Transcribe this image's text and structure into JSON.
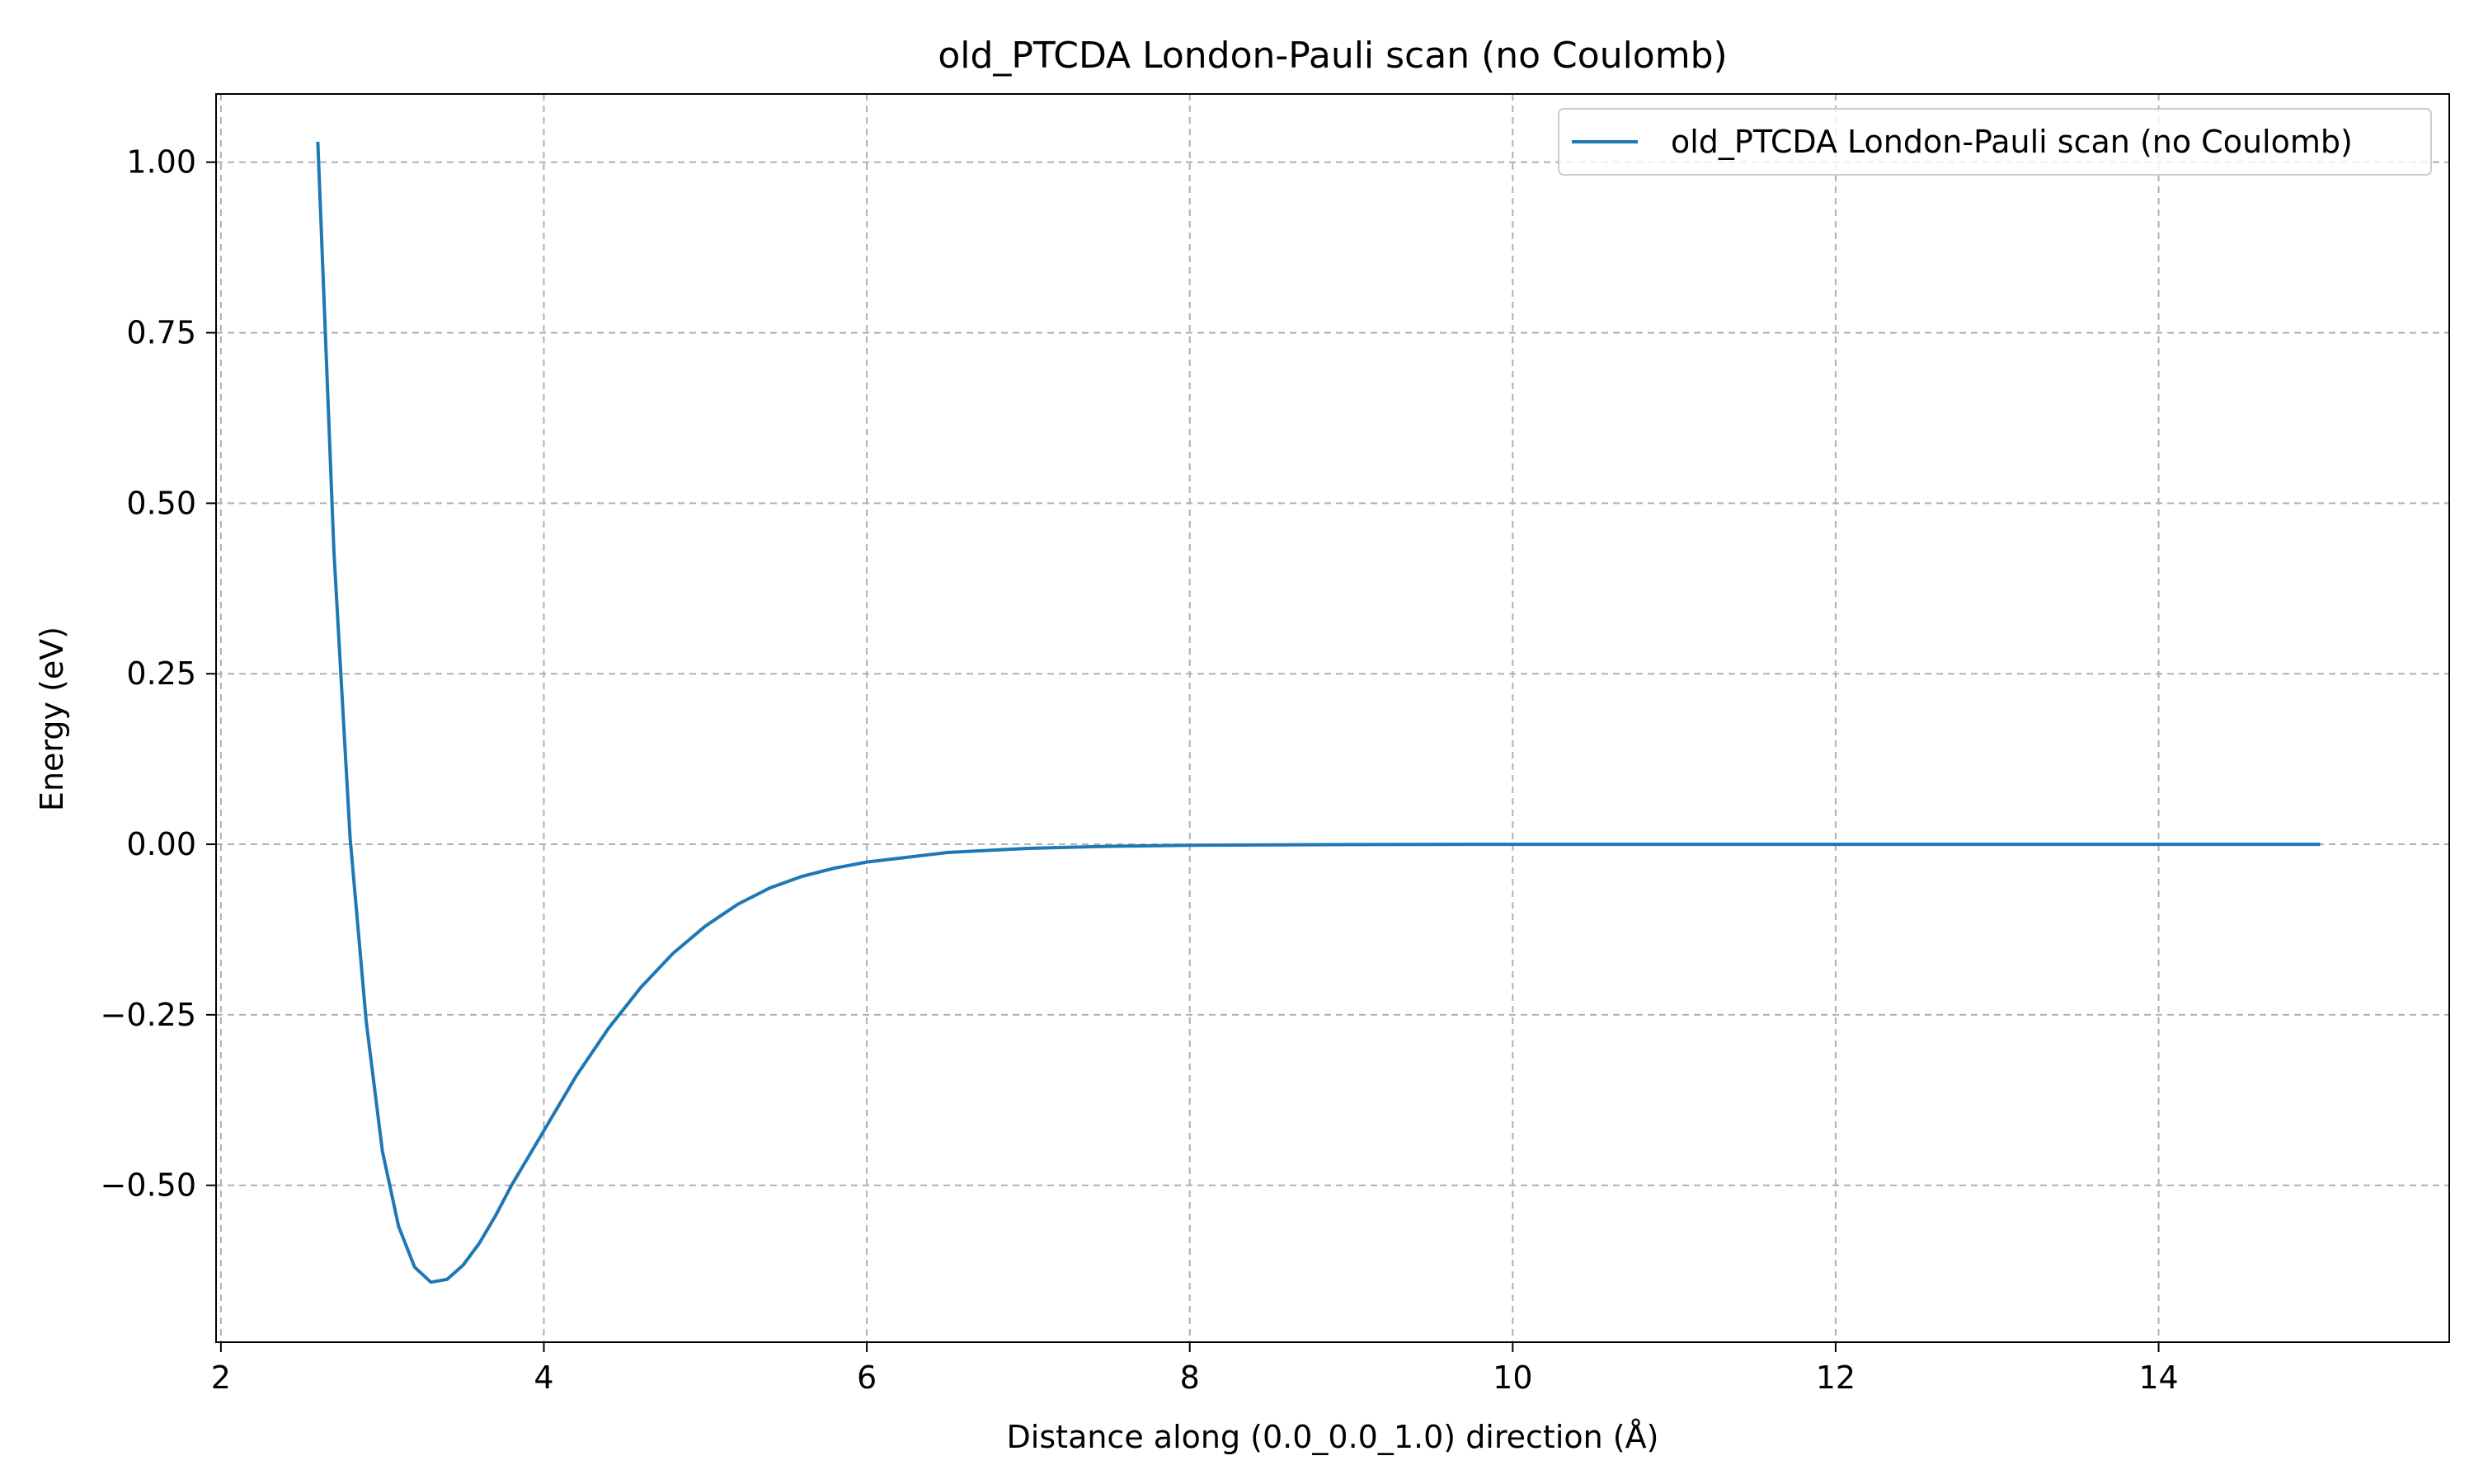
{
  "chart_data": {
    "type": "line",
    "title": "old_PTCDA London-Pauli scan (no Coulomb)",
    "xlabel": "Distance along (0.0_0.0_1.0) direction (Å)",
    "ylabel": "Energy (eV)",
    "xlim": [
      1.97,
      15.8
    ],
    "ylim": [
      -0.73,
      1.1
    ],
    "grid": true,
    "legend_location": "upper right",
    "x_ticks": [
      {
        "value": 2,
        "label": "2"
      },
      {
        "value": 4,
        "label": "4"
      },
      {
        "value": 6,
        "label": "6"
      },
      {
        "value": 8,
        "label": "8"
      },
      {
        "value": 10,
        "label": "10"
      },
      {
        "value": 12,
        "label": "12"
      },
      {
        "value": 14,
        "label": "14"
      }
    ],
    "y_ticks": [
      {
        "value": -0.5,
        "label": "−0.50"
      },
      {
        "value": -0.25,
        "label": "−0.25"
      },
      {
        "value": 0.0,
        "label": "0.00"
      },
      {
        "value": 0.25,
        "label": "0.25"
      },
      {
        "value": 0.5,
        "label": "0.50"
      },
      {
        "value": 0.75,
        "label": "0.75"
      },
      {
        "value": 1.0,
        "label": "1.00"
      }
    ],
    "series": [
      {
        "name": "old_PTCDA London-Pauli scan (no Coulomb)",
        "color": "#1f77b4",
        "x": [
          2.6,
          2.7,
          2.8,
          2.9,
          3.0,
          3.1,
          3.2,
          3.3,
          3.4,
          3.5,
          3.6,
          3.7,
          3.8,
          4.0,
          4.2,
          4.4,
          4.6,
          4.8,
          5.0,
          5.2,
          5.4,
          5.6,
          5.8,
          6.0,
          6.5,
          7.0,
          7.5,
          8.0,
          9.0,
          10.0,
          11.0,
          12.0,
          13.0,
          14.0,
          15.0
        ],
        "y": [
          1.03,
          0.43,
          0.01,
          -0.26,
          -0.45,
          -0.56,
          -0.62,
          -0.642,
          -0.638,
          -0.617,
          -0.585,
          -0.545,
          -0.5,
          -0.42,
          -0.34,
          -0.27,
          -0.21,
          -0.16,
          -0.12,
          -0.088,
          -0.064,
          -0.047,
          -0.035,
          -0.026,
          -0.012,
          -0.006,
          -0.003,
          -0.0015,
          -0.0004,
          -0.0001,
          0.0,
          0.0,
          0.0,
          0.0,
          0.0
        ]
      }
    ]
  }
}
